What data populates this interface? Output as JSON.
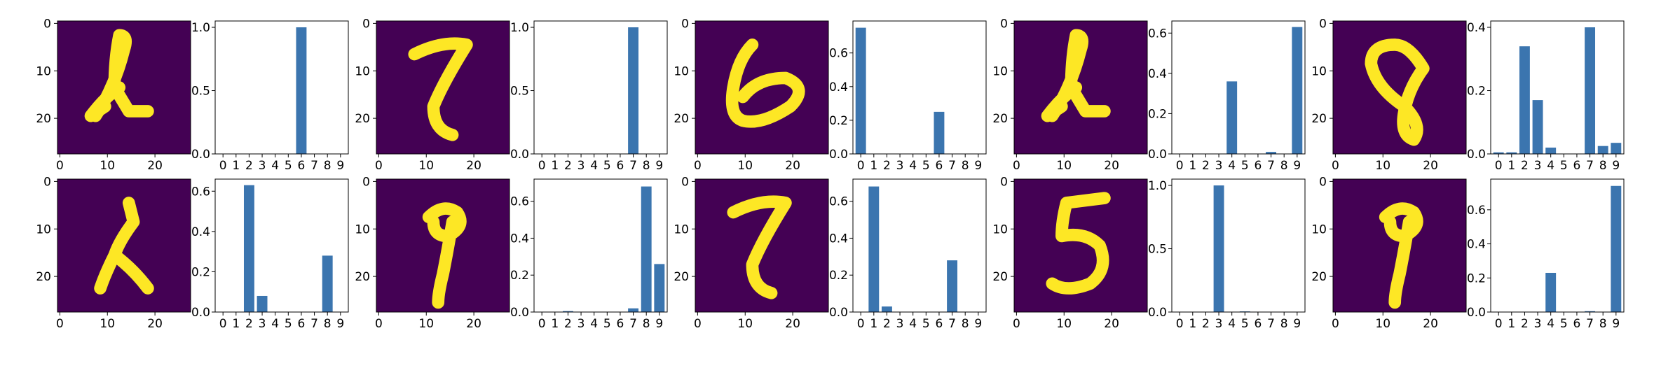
{
  "figure": {
    "description_type": "grid of 10 panels: digit image + class probability bar chart",
    "colors": {
      "bar": "#3b75af",
      "image_bg": "#440154",
      "image_fg": "#fde725",
      "axis": "#000000"
    }
  },
  "chart_data": [
    {
      "type": "bar",
      "position": "row1-pair1",
      "categories": [
        "0",
        "1",
        "2",
        "3",
        "4",
        "5",
        "6",
        "7",
        "8",
        "9"
      ],
      "values": [
        0,
        0,
        0,
        0,
        0,
        0,
        1.0,
        0,
        0,
        0
      ],
      "ylim": [
        0,
        1.05
      ],
      "yticks": [
        "0.0",
        "0.5",
        "1.0"
      ],
      "image": {
        "type": "heatmap",
        "digit_shape": "4",
        "xticks": [
          "0",
          "10",
          "20"
        ],
        "yticks": [
          "0",
          "10",
          "20"
        ]
      }
    },
    {
      "type": "bar",
      "position": "row1-pair2",
      "categories": [
        "0",
        "1",
        "2",
        "3",
        "4",
        "5",
        "6",
        "7",
        "8",
        "9"
      ],
      "values": [
        0,
        0,
        0,
        0,
        0,
        0,
        0,
        1.0,
        0,
        0
      ],
      "ylim": [
        0,
        1.05
      ],
      "yticks": [
        "0.0",
        "0.5",
        "1.0"
      ],
      "image": {
        "type": "heatmap",
        "digit_shape": "7",
        "xticks": [
          "0",
          "10",
          "20"
        ],
        "yticks": [
          "0",
          "10",
          "20"
        ]
      }
    },
    {
      "type": "bar",
      "position": "row1-pair3",
      "categories": [
        "0",
        "1",
        "2",
        "3",
        "4",
        "5",
        "6",
        "7",
        "8",
        "9"
      ],
      "values": [
        0.75,
        0,
        0,
        0,
        0,
        0,
        0.25,
        0,
        0,
        0
      ],
      "ylim": [
        0,
        0.79
      ],
      "yticks": [
        "0.0",
        "0.2",
        "0.4",
        "0.6"
      ],
      "image": {
        "type": "heatmap",
        "digit_shape": "6",
        "xticks": [
          "0",
          "10",
          "20"
        ],
        "yticks": [
          "0",
          "10",
          "20"
        ]
      }
    },
    {
      "type": "bar",
      "position": "row1-pair4",
      "categories": [
        "0",
        "1",
        "2",
        "3",
        "4",
        "5",
        "6",
        "7",
        "8",
        "9"
      ],
      "values": [
        0,
        0,
        0,
        0,
        0.36,
        0,
        0,
        0.01,
        0,
        0.63
      ],
      "ylim": [
        0,
        0.66
      ],
      "yticks": [
        "0.0",
        "0.2",
        "0.4",
        "0.6"
      ],
      "image": {
        "type": "heatmap",
        "digit_shape": "4",
        "xticks": [
          "0",
          "10",
          "20"
        ],
        "yticks": [
          "0",
          "10",
          "20"
        ]
      }
    },
    {
      "type": "bar",
      "position": "row1-pair5",
      "categories": [
        "0",
        "1",
        "2",
        "3",
        "4",
        "5",
        "6",
        "7",
        "8",
        "9"
      ],
      "values": [
        0.005,
        0.005,
        0.34,
        0.17,
        0.02,
        0,
        0,
        0.4,
        0.025,
        0.035
      ],
      "ylim": [
        0,
        0.42
      ],
      "yticks": [
        "0.0",
        "0.2",
        "0.4"
      ],
      "image": {
        "type": "heatmap",
        "digit_shape": "8",
        "xticks": [
          "0",
          "10",
          "20"
        ],
        "yticks": [
          "0",
          "10",
          "20"
        ]
      }
    },
    {
      "type": "bar",
      "position": "row2-pair1",
      "categories": [
        "0",
        "1",
        "2",
        "3",
        "4",
        "5",
        "6",
        "7",
        "8",
        "9"
      ],
      "values": [
        0,
        0,
        0.63,
        0.08,
        0,
        0,
        0,
        0,
        0.28,
        0
      ],
      "ylim": [
        0,
        0.66
      ],
      "yticks": [
        "0.0",
        "0.2",
        "0.4",
        "0.6"
      ],
      "image": {
        "type": "heatmap",
        "digit_shape": "2",
        "xticks": [
          "0",
          "10",
          "20"
        ],
        "yticks": [
          "0",
          "10",
          "20"
        ]
      }
    },
    {
      "type": "bar",
      "position": "row2-pair2",
      "categories": [
        "0",
        "1",
        "2",
        "3",
        "4",
        "5",
        "6",
        "7",
        "8",
        "9"
      ],
      "values": [
        0,
        0,
        0.005,
        0,
        0,
        0,
        0,
        0.02,
        0.68,
        0.26
      ],
      "ylim": [
        0,
        0.72
      ],
      "yticks": [
        "0.0",
        "0.2",
        "0.4",
        "0.6"
      ],
      "image": {
        "type": "heatmap",
        "digit_shape": "9",
        "xticks": [
          "0",
          "10",
          "20"
        ],
        "yticks": [
          "0",
          "10",
          "20"
        ]
      }
    },
    {
      "type": "bar",
      "position": "row2-pair3",
      "categories": [
        "0",
        "1",
        "2",
        "3",
        "4",
        "5",
        "6",
        "7",
        "8",
        "9"
      ],
      "values": [
        0,
        0.68,
        0.03,
        0,
        0,
        0,
        0,
        0.28,
        0,
        0
      ],
      "ylim": [
        0,
        0.72
      ],
      "yticks": [
        "0.0",
        "0.2",
        "0.4",
        "0.6"
      ],
      "image": {
        "type": "heatmap",
        "digit_shape": "7",
        "xticks": [
          "0",
          "10",
          "20"
        ],
        "yticks": [
          "0",
          "10",
          "20"
        ]
      }
    },
    {
      "type": "bar",
      "position": "row2-pair4",
      "categories": [
        "0",
        "1",
        "2",
        "3",
        "4",
        "5",
        "6",
        "7",
        "8",
        "9"
      ],
      "values": [
        0,
        0,
        0,
        1.0,
        0,
        0.005,
        0,
        0,
        0,
        0
      ],
      "ylim": [
        0,
        1.05
      ],
      "yticks": [
        "0.0",
        "0.5",
        "1.0"
      ],
      "image": {
        "type": "heatmap",
        "digit_shape": "5",
        "xticks": [
          "0",
          "10",
          "20"
        ],
        "yticks": [
          "0",
          "10",
          "20"
        ]
      }
    },
    {
      "type": "bar",
      "position": "row2-pair5",
      "categories": [
        "0",
        "1",
        "2",
        "3",
        "4",
        "5",
        "6",
        "7",
        "8",
        "9"
      ],
      "values": [
        0,
        0,
        0,
        0,
        0.23,
        0,
        0,
        0.005,
        0,
        0.74
      ],
      "ylim": [
        0,
        0.78
      ],
      "yticks": [
        "0.0",
        "0.2",
        "0.4",
        "0.6"
      ],
      "image": {
        "type": "heatmap",
        "digit_shape": "9",
        "xticks": [
          "0",
          "10",
          "20"
        ],
        "yticks": [
          "0",
          "10",
          "20"
        ]
      }
    }
  ]
}
